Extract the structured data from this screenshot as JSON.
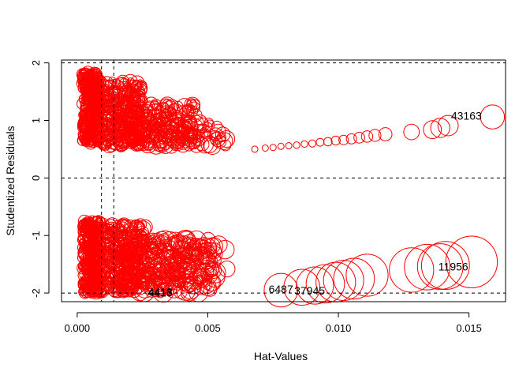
{
  "chart_data": {
    "type": "scatter",
    "title": "",
    "xlabel": "Hat-Values",
    "ylabel": "Studentized Residuals",
    "xlim": [
      -0.0006,
      0.0164
    ],
    "ylim": [
      -2.15,
      2.05
    ],
    "x_ticks": [
      {
        "value": 0.0,
        "label": "0.000"
      },
      {
        "value": 0.005,
        "label": "0.005"
      },
      {
        "value": 0.01,
        "label": "0.010"
      },
      {
        "value": 0.015,
        "label": "0.015"
      }
    ],
    "y_ticks": [
      {
        "value": -2,
        "label": "-2"
      },
      {
        "value": -1,
        "label": "-1"
      },
      {
        "value": 0,
        "label": "0"
      },
      {
        "value": 1,
        "label": "1"
      },
      {
        "value": 2,
        "label": "2"
      }
    ],
    "reference_lines": {
      "horizontal": [
        -2,
        0,
        2
      ],
      "vertical": [
        0.00093,
        0.0014
      ]
    },
    "grid": false,
    "point_color": "#ff0000",
    "series": [
      {
        "points": [
          {
            "x": 0.0068,
            "y": 0.5,
            "size": 0.06
          },
          {
            "x": 0.0072,
            "y": 0.52,
            "size": 0.07
          },
          {
            "x": 0.0075,
            "y": 0.53,
            "size": 0.08
          },
          {
            "x": 0.0078,
            "y": 0.55,
            "size": 0.09
          },
          {
            "x": 0.0081,
            "y": 0.56,
            "size": 0.1
          },
          {
            "x": 0.0084,
            "y": 0.57,
            "size": 0.11
          },
          {
            "x": 0.0087,
            "y": 0.59,
            "size": 0.11
          },
          {
            "x": 0.009,
            "y": 0.6,
            "size": 0.12
          },
          {
            "x": 0.0093,
            "y": 0.62,
            "size": 0.13
          },
          {
            "x": 0.0096,
            "y": 0.63,
            "size": 0.14
          },
          {
            "x": 0.0099,
            "y": 0.65,
            "size": 0.15
          },
          {
            "x": 0.0102,
            "y": 0.66,
            "size": 0.16
          },
          {
            "x": 0.0105,
            "y": 0.68,
            "size": 0.17
          },
          {
            "x": 0.0108,
            "y": 0.7,
            "size": 0.18
          },
          {
            "x": 0.0111,
            "y": 0.72,
            "size": 0.19
          },
          {
            "x": 0.0114,
            "y": 0.74,
            "size": 0.2
          },
          {
            "x": 0.0118,
            "y": 0.76,
            "size": 0.22
          },
          {
            "x": 0.0128,
            "y": 0.8,
            "size": 0.26
          },
          {
            "x": 0.0136,
            "y": 0.84,
            "size": 0.3
          },
          {
            "x": 0.0139,
            "y": 0.87,
            "size": 0.32
          },
          {
            "x": 0.0142,
            "y": 0.91,
            "size": 0.34
          },
          {
            "x": 0.0159,
            "y": 1.06,
            "size": 0.4
          },
          {
            "x": 0.0078,
            "y": -1.95,
            "size": 0.56
          },
          {
            "x": 0.0086,
            "y": -1.9,
            "size": 0.6
          },
          {
            "x": 0.0091,
            "y": -1.87,
            "size": 0.62
          },
          {
            "x": 0.0095,
            "y": -1.84,
            "size": 0.64
          },
          {
            "x": 0.0099,
            "y": -1.81,
            "size": 0.66
          },
          {
            "x": 0.0102,
            "y": -1.78,
            "size": 0.67
          },
          {
            "x": 0.0106,
            "y": -1.75,
            "size": 0.68
          },
          {
            "x": 0.0111,
            "y": -1.69,
            "size": 0.7
          },
          {
            "x": 0.0128,
            "y": -1.6,
            "size": 0.74
          },
          {
            "x": 0.0134,
            "y": -1.55,
            "size": 0.76
          },
          {
            "x": 0.0141,
            "y": -1.52,
            "size": 0.8
          },
          {
            "x": 0.0151,
            "y": -1.46,
            "size": 0.86
          },
          {
            "x": 0.0139,
            "y": -1.54,
            "size": 0.76
          }
        ]
      }
    ],
    "annotations": [
      {
        "text": "43163",
        "x": 0.0149,
        "y": 1.08
      },
      {
        "text": "11956",
        "x": 0.0144,
        "y": -1.54
      },
      {
        "text": "6487",
        "x": 0.0078,
        "y": -1.93
      },
      {
        "text": "37945",
        "x": 0.0089,
        "y": -1.96
      },
      {
        "text": "4418",
        "x": 0.00318,
        "y": -1.98
      },
      {
        "text": "4413",
        "x": 0.00318,
        "y": -1.99
      }
    ]
  }
}
